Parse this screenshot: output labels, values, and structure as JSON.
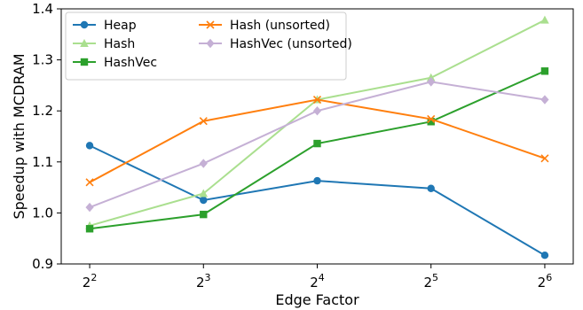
{
  "chart_data": {
    "type": "line",
    "title": "",
    "xlabel": "Edge Factor",
    "ylabel": "Speedup with MCDRAM",
    "x": [
      2,
      3,
      4,
      5,
      6
    ],
    "x_tick_base": "2",
    "x_tick_exponents": [
      "2",
      "3",
      "4",
      "5",
      "6"
    ],
    "x_scale": "log2",
    "ylim": [
      0.9,
      1.4
    ],
    "y_ticks": [
      "0.9",
      "1.0",
      "1.1",
      "1.2",
      "1.3",
      "1.4"
    ],
    "grid": false,
    "legend_position": "top-left",
    "series": [
      {
        "name": "Heap",
        "color": "#1f77b4",
        "marker": "circle",
        "values": [
          1.132,
          1.025,
          1.063,
          1.048,
          0.917
        ]
      },
      {
        "name": "Hash",
        "color": "#aadf8f",
        "marker": "triangle",
        "values": [
          0.975,
          1.038,
          1.222,
          1.265,
          1.378
        ]
      },
      {
        "name": "HashVec",
        "color": "#2ca02c",
        "marker": "square",
        "values": [
          0.969,
          0.997,
          1.136,
          1.179,
          1.278
        ]
      },
      {
        "name": "Hash (unsorted)",
        "color": "#ff7f0e",
        "marker": "x",
        "values": [
          1.06,
          1.18,
          1.222,
          1.184,
          1.107
        ]
      },
      {
        "name": "HashVec (unsorted)",
        "color": "#c5b0d5",
        "marker": "diamond",
        "values": [
          1.011,
          1.097,
          1.2,
          1.257,
          1.222
        ]
      }
    ]
  }
}
